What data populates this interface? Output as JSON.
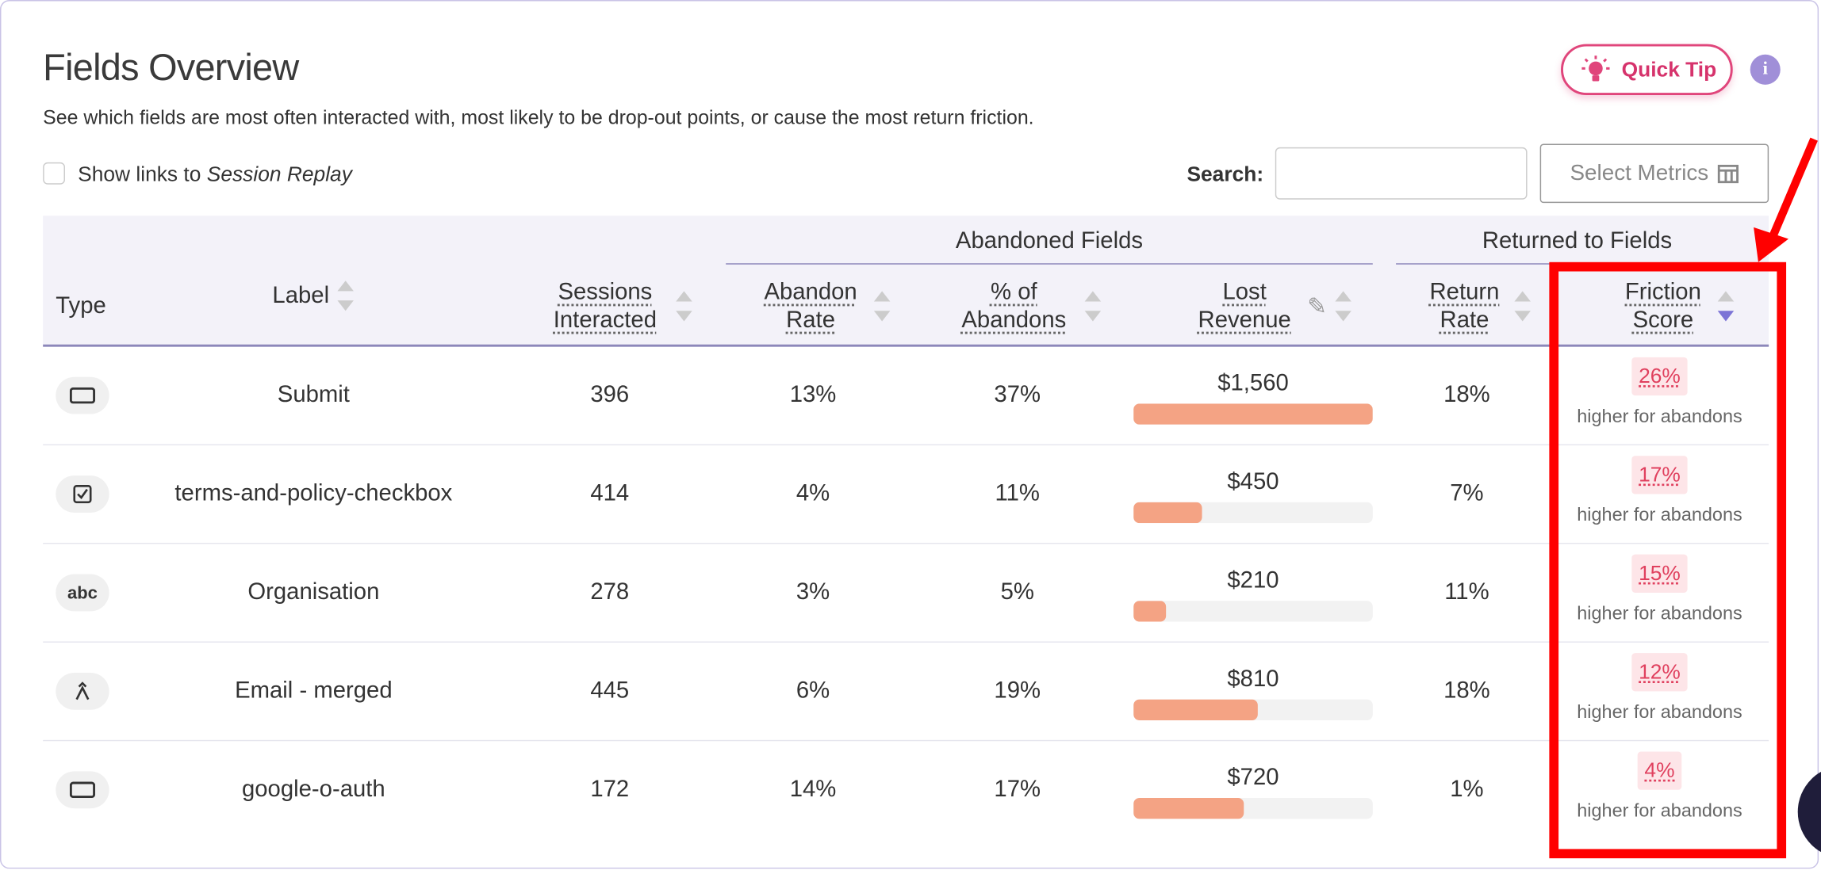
{
  "header": {
    "title": "Fields Overview",
    "description": "See which fields are most often interacted with, most likely to be drop-out points, or cause the most return friction.",
    "quick_tip": "Quick Tip"
  },
  "controls": {
    "session_replay_prefix": "Show links to",
    "session_replay_link": "Session Replay",
    "search_label": "Search:",
    "select_metrics": "Select Metrics"
  },
  "table": {
    "groups": [
      "Abandoned Fields",
      "Returned to Fields"
    ],
    "columns": [
      "Type",
      "Label",
      "Sessions Interacted",
      "Abandon Rate",
      "% of Abandons",
      "Lost Revenue",
      "Return Rate",
      "Friction Score"
    ],
    "rows": [
      {
        "label": "Submit",
        "sessions": "396",
        "abandon_rate": "13%",
        "pct_abandons": "37%",
        "lost_revenue": {
          "value": 1560,
          "label": "$1,560"
        },
        "return_rate": "18%",
        "friction_score": "26%",
        "friction_note": "higher for abandons"
      },
      {
        "label": "terms-and-policy-checkbox",
        "sessions": "414",
        "abandon_rate": "4%",
        "pct_abandons": "11%",
        "lost_revenue": {
          "value": 450,
          "label": "$450"
        },
        "return_rate": "7%",
        "friction_score": "17%",
        "friction_note": "higher for abandons"
      },
      {
        "type": "abc",
        "label": "Organisation",
        "sessions": "278",
        "abandon_rate": "3%",
        "pct_abandons": "5%",
        "lost_revenue": {
          "value": 210,
          "label": "$210"
        },
        "return_rate": "11%",
        "friction_score": "15%",
        "friction_note": "higher for abandons"
      },
      {
        "label": "Email - merged",
        "sessions": "445",
        "abandon_rate": "6%",
        "pct_abandons": "19%",
        "lost_revenue": {
          "value": 810,
          "label": "$810"
        },
        "return_rate": "18%",
        "friction_score": "12%",
        "friction_note": "higher for abandons"
      },
      {
        "label": "google-o-auth",
        "sessions": "172",
        "abandon_rate": "14%",
        "pct_abandons": "17%",
        "lost_revenue": {
          "value": 720,
          "label": "$720"
        },
        "return_rate": "1%",
        "friction_score": "4%",
        "friction_note": "higher for abandons"
      }
    ]
  }
}
